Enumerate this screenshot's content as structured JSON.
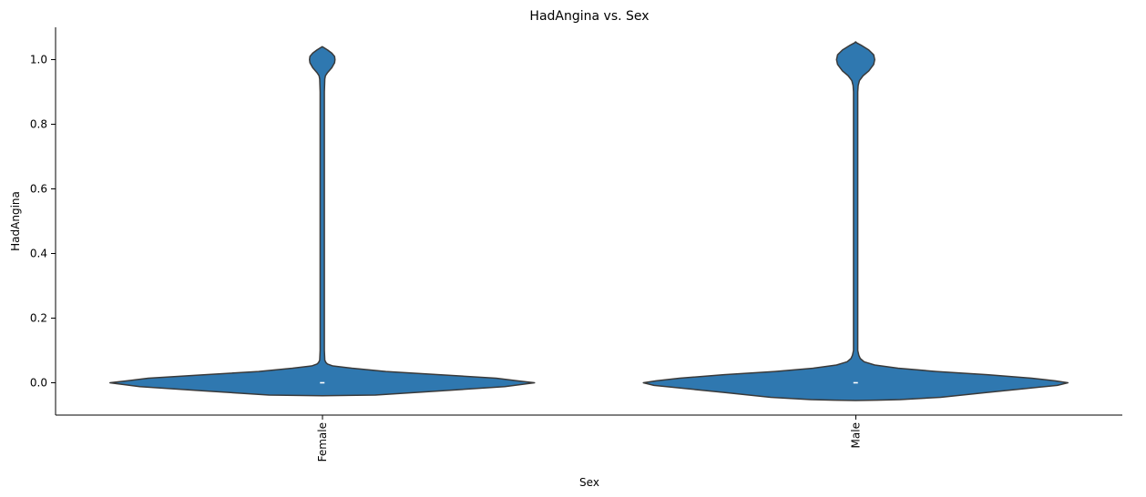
{
  "chart_data": {
    "type": "violin",
    "title": "HadAngina vs. Sex",
    "xlabel": "Sex",
    "ylabel": "HadAngina",
    "categories": [
      "Female",
      "Male"
    ],
    "ylim": [
      -0.1,
      1.1
    ],
    "yticks": [
      0.0,
      0.2,
      0.4,
      0.6,
      0.8,
      1.0
    ],
    "ytick_labels": [
      "0.0",
      "0.2",
      "0.4",
      "0.6",
      "0.8",
      "1.0"
    ],
    "xtick_rotation": -90,
    "grid": false,
    "legend": false,
    "fill_color": "#2f78b0",
    "edge_color": "#3a3a3a",
    "median_color": "#ffffff",
    "violins": [
      {
        "category": "Female",
        "median": 0.0,
        "profile": [
          [
            -0.04,
            0.0
          ],
          [
            -0.038,
            0.25
          ],
          [
            -0.025,
            0.56
          ],
          [
            -0.012,
            0.86
          ],
          [
            -0.006,
            0.93
          ],
          [
            0.0,
            1.0
          ],
          [
            0.006,
            0.92
          ],
          [
            0.014,
            0.82
          ],
          [
            0.025,
            0.55
          ],
          [
            0.035,
            0.3
          ],
          [
            0.045,
            0.14
          ],
          [
            0.052,
            0.05
          ],
          [
            0.058,
            0.025
          ],
          [
            0.062,
            0.018
          ],
          [
            0.07,
            0.012
          ],
          [
            0.1,
            0.01
          ],
          [
            0.3,
            0.01
          ],
          [
            0.6,
            0.01
          ],
          [
            0.9,
            0.01
          ],
          [
            0.94,
            0.012
          ],
          [
            0.95,
            0.015
          ],
          [
            0.96,
            0.025
          ],
          [
            0.975,
            0.045
          ],
          [
            0.99,
            0.058
          ],
          [
            1.0,
            0.06
          ],
          [
            1.01,
            0.058
          ],
          [
            1.02,
            0.045
          ],
          [
            1.03,
            0.025
          ],
          [
            1.037,
            0.008
          ],
          [
            1.04,
            0.0
          ]
        ]
      },
      {
        "category": "Male",
        "median": 0.0,
        "profile": [
          [
            -0.055,
            0.0
          ],
          [
            -0.054,
            0.1
          ],
          [
            -0.052,
            0.21
          ],
          [
            -0.045,
            0.4
          ],
          [
            -0.03,
            0.62
          ],
          [
            -0.018,
            0.8
          ],
          [
            -0.008,
            0.95
          ],
          [
            0.0,
            1.0
          ],
          [
            0.006,
            0.94
          ],
          [
            0.014,
            0.83
          ],
          [
            0.025,
            0.62
          ],
          [
            0.035,
            0.38
          ],
          [
            0.045,
            0.2
          ],
          [
            0.055,
            0.09
          ],
          [
            0.065,
            0.04
          ],
          [
            0.075,
            0.022
          ],
          [
            0.085,
            0.015
          ],
          [
            0.1,
            0.01
          ],
          [
            0.3,
            0.01
          ],
          [
            0.6,
            0.01
          ],
          [
            0.9,
            0.01
          ],
          [
            0.92,
            0.012
          ],
          [
            0.935,
            0.018
          ],
          [
            0.95,
            0.035
          ],
          [
            0.965,
            0.062
          ],
          [
            0.985,
            0.085
          ],
          [
            1.0,
            0.09
          ],
          [
            1.015,
            0.085
          ],
          [
            1.03,
            0.062
          ],
          [
            1.045,
            0.025
          ],
          [
            1.052,
            0.005
          ],
          [
            1.055,
            0.0
          ]
        ]
      }
    ]
  }
}
